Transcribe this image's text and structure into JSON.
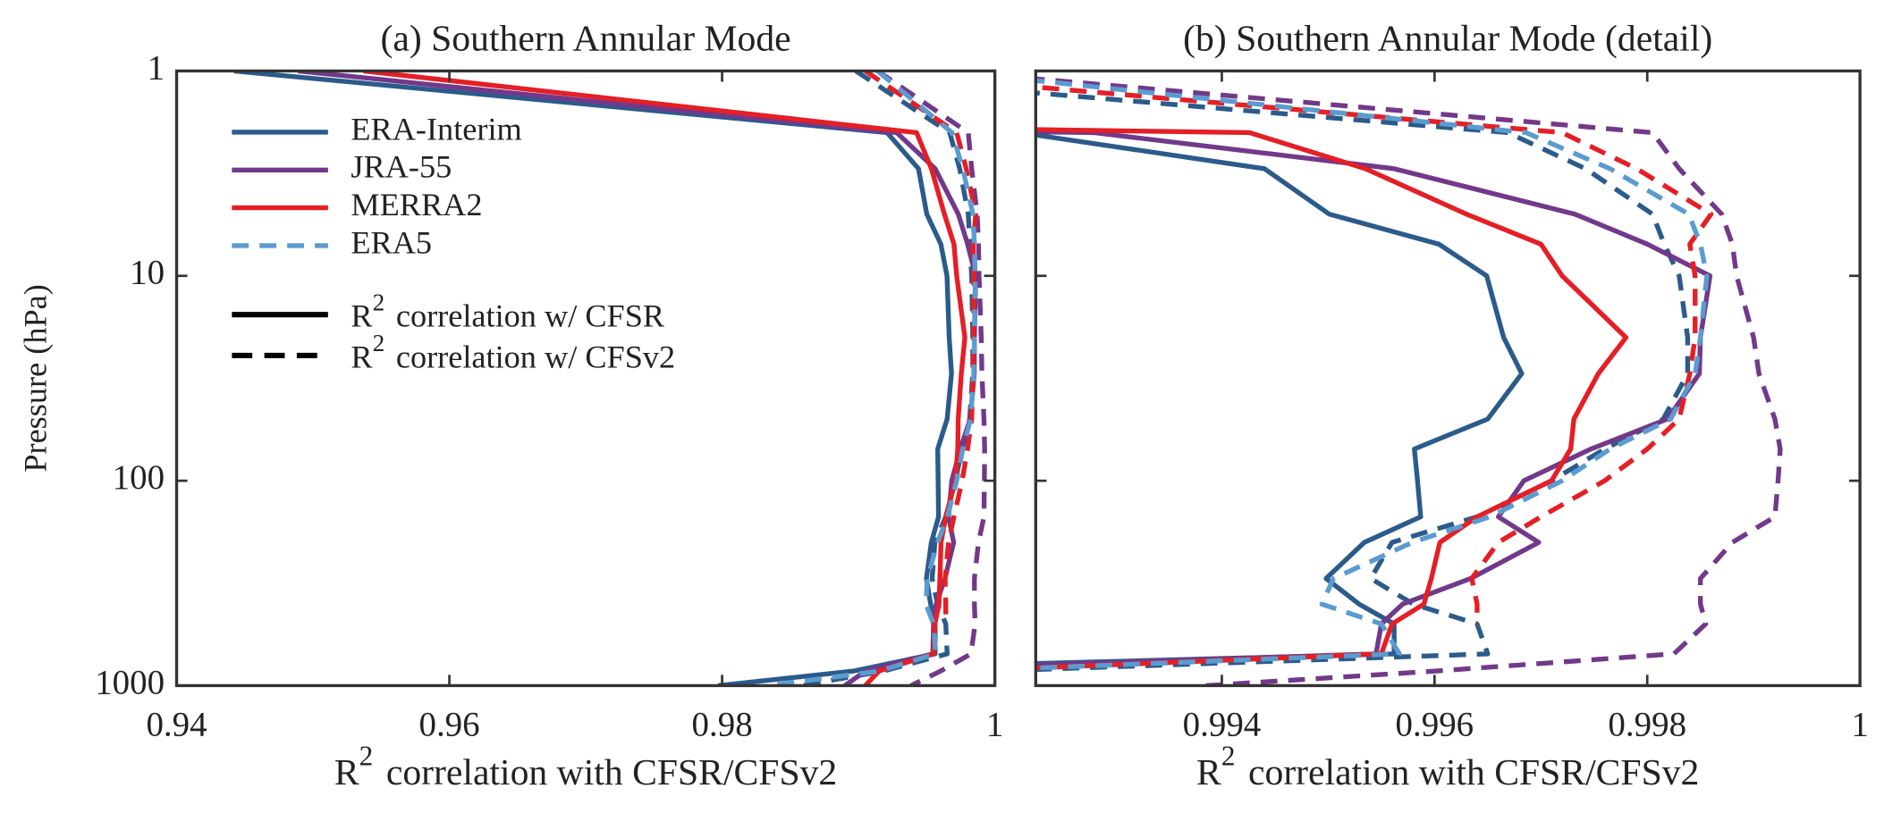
{
  "chart_data": [
    {
      "type": "line",
      "title": "(a) Southern Annular Mode",
      "ylabel": "Pressure (hPa)",
      "xlabel_parts": [
        "R",
        "2",
        "correlation  with CFSR/CFSv2"
      ],
      "xlim": [
        0.94,
        1
      ],
      "xticks": [
        0.94,
        0.96,
        0.98,
        1
      ],
      "ylim": [
        1,
        1000
      ],
      "yticks": [
        1,
        10,
        100,
        1000
      ],
      "y_log": true,
      "y_reversed": true,
      "y_tick_labels": true,
      "y": [
        1,
        2,
        3,
        5,
        7,
        10,
        20,
        30,
        50,
        70,
        100,
        150,
        200,
        300,
        400,
        500,
        700,
        850,
        1000
      ],
      "series": [
        {
          "name": "ERA-Interim",
          "color": "#2b5b8b",
          "values": [
            0.9442,
            0.9921,
            0.9944,
            0.99501,
            0.99604,
            0.99649,
            0.99665,
            0.99682,
            0.9965,
            0.99581,
            0.99584,
            0.99587,
            0.99534,
            0.99498,
            0.99529,
            0.99562,
            0.99562,
            0.9896,
            0.9797
          ],
          "values_cfsv2": [
            0.9898,
            0.99669,
            0.99742,
            0.99805,
            0.99816,
            0.9983,
            0.99838,
            0.99838,
            0.99815,
            0.9976,
            0.9971,
            0.9964,
            0.9956,
            0.9954,
            0.9958,
            0.9964,
            0.9965,
            0.9918,
            0.9858
          ]
        },
        {
          "name": "JRA-55",
          "color": "#72398a",
          "values": [
            0.9489,
            0.9928,
            0.99562,
            0.99732,
            0.998,
            0.99859,
            0.9985,
            0.99849,
            0.99819,
            0.99747,
            0.99684,
            0.9966,
            0.99698,
            0.99634,
            0.9957,
            0.9955,
            0.99545,
            0.9905,
            0.989
          ],
          "values_cfsv2": [
            0.9914,
            0.99805,
            0.9983,
            0.9987,
            0.9988,
            0.99884,
            0.999,
            0.99905,
            0.9992,
            0.99925,
            0.99923,
            0.9992,
            0.9988,
            0.9985,
            0.9985,
            0.99855,
            0.99825,
            0.996,
            0.99385
          ]
        },
        {
          "name": "MERRA2",
          "color": "#e41f26",
          "values": [
            0.9537,
            0.99426,
            0.99535,
            0.9963,
            0.997,
            0.9972,
            0.9978,
            0.99754,
            0.99731,
            0.99728,
            0.9971,
            0.9964,
            0.99605,
            0.99597,
            0.9959,
            0.9956,
            0.9955,
            0.9915,
            0.9905
          ],
          "values_cfsv2": [
            0.9905,
            0.9972,
            0.9979,
            0.9986,
            0.9984,
            0.99845,
            0.99845,
            0.9984,
            0.9983,
            0.998,
            0.9976,
            0.997,
            0.9966,
            0.99635,
            0.9964,
            0.9964,
            null,
            null,
            null
          ]
        },
        {
          "name": "ERA5",
          "color": "#5b9bd0",
          "values_cfsv2": [
            0.9914,
            0.99686,
            0.99765,
            0.99839,
            0.9985,
            0.99856,
            0.9985,
            0.99845,
            0.99822,
            0.99765,
            0.9972,
            0.99652,
            0.99579,
            0.99505,
            0.99494,
            0.9955,
            0.99567,
            0.9915,
            0.9834
          ]
        }
      ],
      "style_legend": [
        {
          "dashed": false,
          "color": "#000000",
          "label_parts": [
            "R",
            "2",
            "correlation w/ CFSR"
          ]
        },
        {
          "dashed": true,
          "color": "#000000",
          "label_parts": [
            "R",
            "2",
            "correlation w/ CFSv2"
          ]
        }
      ]
    },
    {
      "type": "line",
      "title": "(b) Southern Annular Mode (detail)",
      "xlabel_parts": [
        "R",
        "2",
        "correlation  with CFSR/CFSv2"
      ],
      "xlim": [
        0.99225,
        1
      ],
      "xticks": [
        0.994,
        0.996,
        0.998,
        1
      ],
      "ylim": [
        1,
        1000
      ],
      "yticks": [
        1,
        10,
        100,
        1000
      ],
      "y_log": true,
      "y_reversed": true,
      "y_tick_labels": false,
      "y": [
        1,
        2,
        3,
        5,
        7,
        10,
        20,
        30,
        50,
        70,
        100,
        150,
        200,
        300,
        400,
        500,
        700,
        850,
        1000
      ],
      "series": [
        {
          "color": "#2b5b8b",
          "values": [
            0.9442,
            0.9921,
            0.9944,
            0.99501,
            0.99604,
            0.99649,
            0.99665,
            0.99682,
            0.9965,
            0.99581,
            0.99584,
            0.99587,
            0.99534,
            0.99498,
            0.99529,
            0.99562,
            0.99562,
            0.9896,
            0.9797
          ],
          "values_cfsv2": [
            0.9898,
            0.99669,
            0.99742,
            0.99805,
            0.99816,
            0.9983,
            0.99838,
            0.99838,
            0.99815,
            0.9976,
            0.9971,
            0.9964,
            0.9956,
            0.9954,
            0.9958,
            0.9964,
            0.9965,
            0.9918,
            0.9858
          ]
        },
        {
          "color": "#72398a",
          "values": [
            0.9489,
            0.9928,
            0.99562,
            0.99732,
            0.998,
            0.99859,
            0.9985,
            0.99849,
            0.99819,
            0.99747,
            0.99684,
            0.9966,
            0.99698,
            0.99634,
            0.9957,
            0.9955,
            0.99545,
            0.9905,
            0.989
          ],
          "values_cfsv2": [
            0.9914,
            0.99805,
            0.9983,
            0.9987,
            0.9988,
            0.99884,
            0.999,
            0.99905,
            0.9992,
            0.99925,
            0.99923,
            0.9992,
            0.9988,
            0.9985,
            0.9985,
            0.99855,
            0.99825,
            0.996,
            0.99385
          ]
        },
        {
          "color": "#e41f26",
          "values": [
            0.9537,
            0.99426,
            0.99535,
            0.9963,
            0.997,
            0.9972,
            0.9978,
            0.99754,
            0.99731,
            0.99728,
            0.9971,
            0.9964,
            0.99605,
            0.99597,
            0.9959,
            0.9956,
            0.9955,
            0.9915,
            0.9905
          ],
          "values_cfsv2": [
            0.9905,
            0.9972,
            0.9979,
            0.9986,
            0.9984,
            0.99845,
            0.99845,
            0.9984,
            0.9983,
            0.998,
            0.9976,
            0.997,
            0.9966,
            0.99635,
            0.9964,
            0.9964,
            null,
            null,
            null
          ]
        },
        {
          "color": "#5b9bd0",
          "values_cfsv2": [
            0.9914,
            0.99686,
            0.99765,
            0.99839,
            0.9985,
            0.99856,
            0.9985,
            0.99845,
            0.99822,
            0.99765,
            0.9972,
            0.99652,
            0.99579,
            0.99505,
            0.99494,
            0.9955,
            0.99567,
            0.9915,
            0.9834
          ]
        }
      ]
    }
  ]
}
